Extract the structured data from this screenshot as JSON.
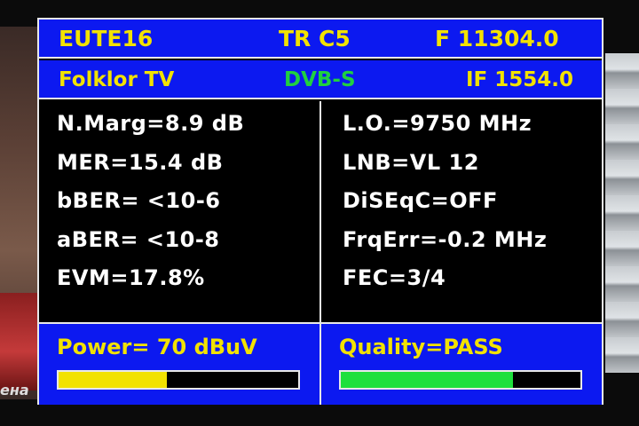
{
  "background": {
    "left_caption": "ена"
  },
  "header": {
    "satellite": "EUTE16",
    "transponder": "TR C5",
    "frequency": "F 11304.0",
    "channel": "Folklor TV",
    "standard": "DVB-S",
    "if_frequency": "IF 1554.0"
  },
  "measurements_left": [
    "N.Marg=8.9 dB",
    "MER=15.4 dB",
    "bBER= <10-6",
    "aBER= <10-8",
    "EVM=17.8%"
  ],
  "measurements_right": [
    "L.O.=9750 MHz",
    "LNB=VL 12",
    "DiSEqC=OFF",
    "FrqErr=-0.2 MHz",
    "FEC=3/4"
  ],
  "power": {
    "label": "Power=  70 dBuV",
    "level": 0.45,
    "color": "#f2e200"
  },
  "quality": {
    "label": "Quality=PASS",
    "level": 0.72,
    "color": "#1ee03c"
  },
  "colors": {
    "panel_blue": "#0c19f0",
    "header_text": "#f2e200",
    "standard_text": "#20d040"
  }
}
